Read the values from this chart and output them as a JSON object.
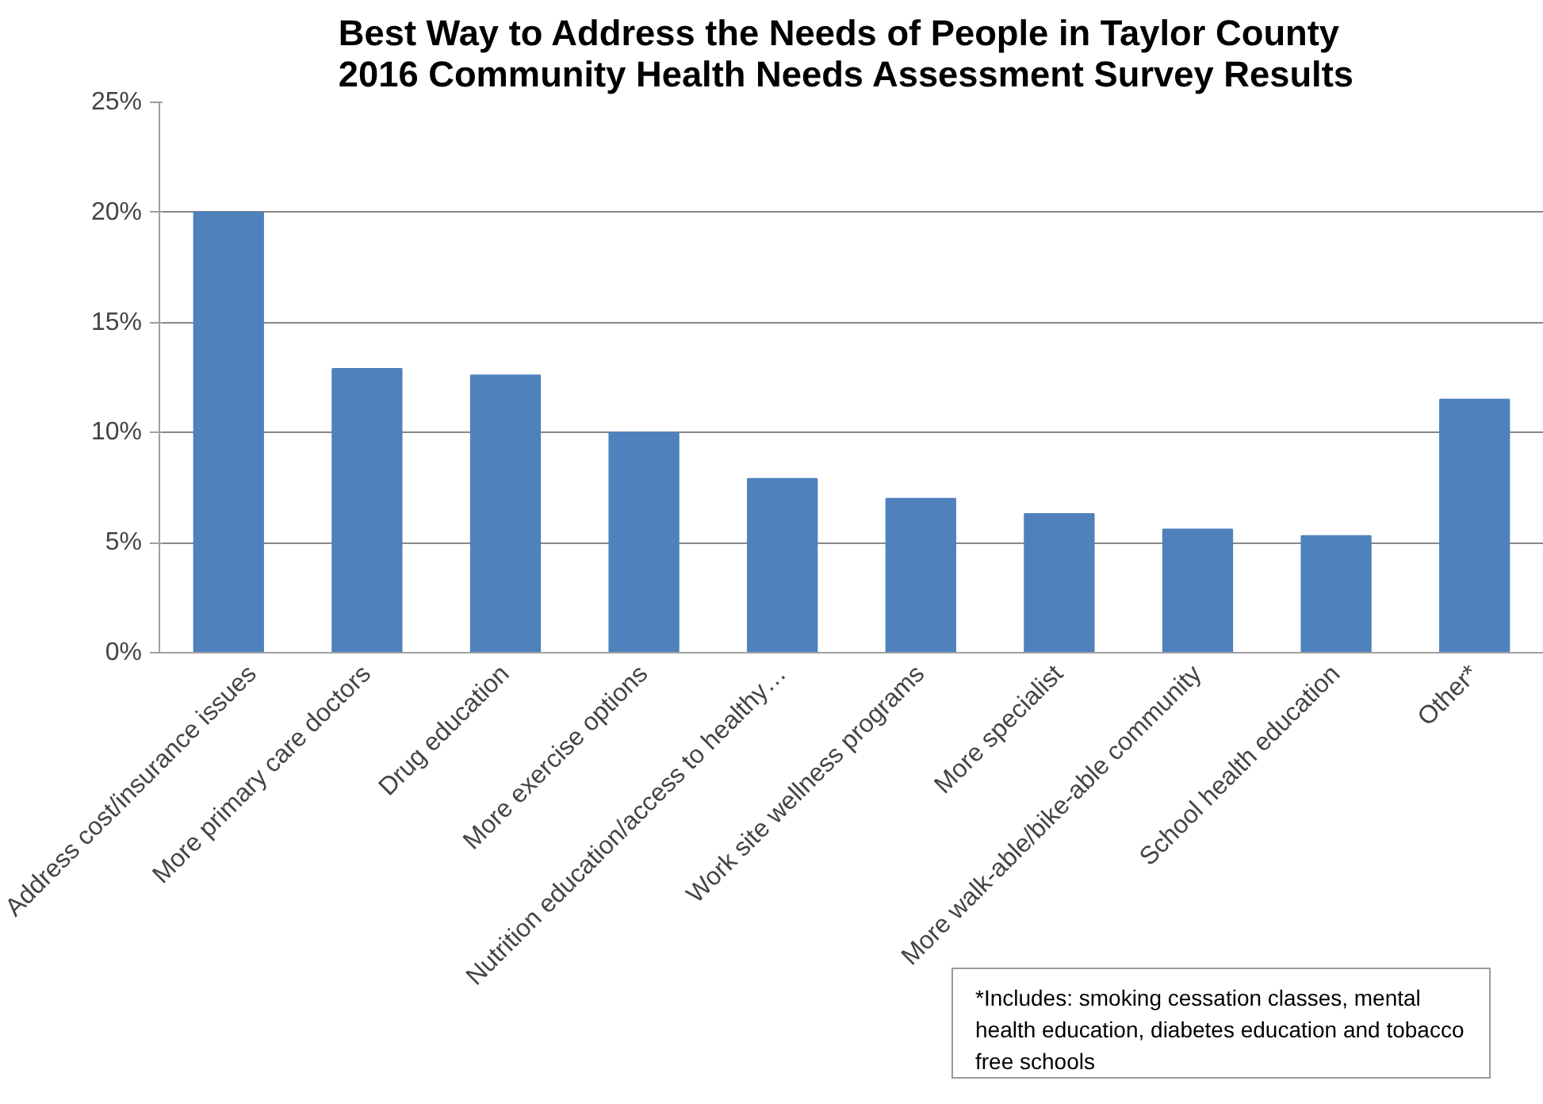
{
  "chart_data": {
    "type": "bar",
    "title": "Best Way to Address the Needs of People in Taylor County\n2016 Community  Health Needs Assessment Survey Results",
    "categories": [
      "Address cost/insurance issues",
      "More primary care doctors",
      "Drug education",
      "More exercise options",
      "Nutrition education/access to healthy…",
      "Work site wellness programs",
      "More specialist",
      "More walk-able/bike-able community",
      "School health education",
      "Other*"
    ],
    "values": [
      20.0,
      12.9,
      12.6,
      10.0,
      7.9,
      7.0,
      6.3,
      5.6,
      5.3,
      11.5
    ],
    "color": "#4f81bd",
    "ylim": [
      0,
      25
    ],
    "yticks": [
      {
        "value": 0,
        "label": "0%"
      },
      {
        "value": 5,
        "label": "5%"
      },
      {
        "value": 10,
        "label": "10%"
      },
      {
        "value": 15,
        "label": "15%"
      },
      {
        "value": 20,
        "label": "20%"
      },
      {
        "value": 25,
        "label": "25%"
      }
    ],
    "grid": "y",
    "annotations": [
      "*Includes:  smoking cessation classes, mental health education, diabetes education and tobacco free schools"
    ]
  }
}
